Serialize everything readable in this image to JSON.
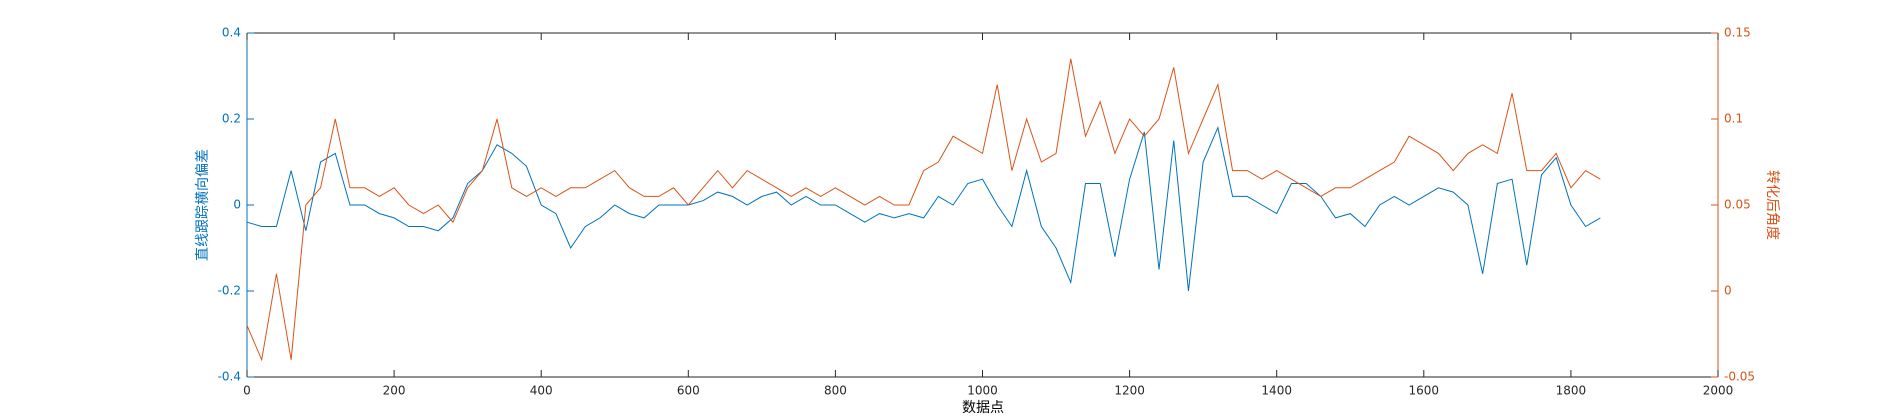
{
  "chart_data": {
    "type": "line",
    "x_label": "数据点",
    "y_label": "直线跟踪横向偏差",
    "y2_label": "转化后角度",
    "x": [
      0,
      20,
      40,
      60,
      80,
      100,
      120,
      140,
      160,
      180,
      200,
      220,
      240,
      260,
      280,
      300,
      320,
      340,
      360,
      380,
      400,
      420,
      440,
      460,
      480,
      500,
      520,
      540,
      560,
      580,
      600,
      620,
      640,
      660,
      680,
      700,
      720,
      740,
      760,
      780,
      800,
      820,
      840,
      860,
      880,
      900,
      920,
      940,
      960,
      980,
      1000,
      1020,
      1040,
      1060,
      1080,
      1100,
      1120,
      1140,
      1160,
      1180,
      1200,
      1220,
      1240,
      1260,
      1280,
      1300,
      1320,
      1340,
      1360,
      1380,
      1400,
      1420,
      1440,
      1460,
      1480,
      1500,
      1520,
      1540,
      1560,
      1580,
      1600,
      1620,
      1640,
      1660,
      1680,
      1700,
      1720,
      1740,
      1760,
      1780,
      1800,
      1820,
      1840
    ],
    "series": [
      {
        "color": "#0072BD",
        "axis": "y",
        "values": [
          -0.04,
          -0.05,
          -0.05,
          0.08,
          -0.06,
          0.1,
          0.12,
          0.0,
          0.0,
          -0.02,
          -0.03,
          -0.05,
          -0.05,
          -0.06,
          -0.03,
          0.05,
          0.08,
          0.14,
          0.12,
          0.09,
          0.0,
          -0.02,
          -0.1,
          -0.05,
          -0.03,
          0.0,
          -0.02,
          -0.03,
          0.0,
          0.0,
          0.0,
          0.01,
          0.03,
          0.02,
          0.0,
          0.02,
          0.03,
          0.0,
          0.02,
          0.0,
          0.0,
          -0.02,
          -0.04,
          -0.02,
          -0.03,
          -0.02,
          -0.03,
          0.02,
          0.0,
          0.05,
          0.06,
          0.0,
          -0.05,
          0.08,
          -0.05,
          -0.1,
          -0.18,
          0.05,
          0.05,
          -0.12,
          0.06,
          0.17,
          -0.15,
          0.15,
          -0.2,
          0.1,
          0.18,
          0.02,
          0.02,
          0.0,
          -0.02,
          0.05,
          0.05,
          0.02,
          -0.03,
          -0.02,
          -0.05,
          0.0,
          0.02,
          0.0,
          0.02,
          0.04,
          0.03,
          0.0,
          -0.16,
          0.05,
          0.06,
          -0.14,
          0.07,
          0.11,
          0.0,
          -0.05,
          -0.03
        ]
      },
      {
        "color": "#D95319",
        "axis": "y2",
        "values": [
          -0.02,
          -0.04,
          0.01,
          -0.04,
          0.05,
          0.06,
          0.1,
          0.06,
          0.06,
          0.055,
          0.06,
          0.05,
          0.045,
          0.05,
          0.04,
          0.06,
          0.07,
          0.1,
          0.06,
          0.055,
          0.06,
          0.055,
          0.06,
          0.06,
          0.065,
          0.07,
          0.06,
          0.055,
          0.055,
          0.06,
          0.05,
          0.06,
          0.07,
          0.06,
          0.07,
          0.065,
          0.06,
          0.055,
          0.06,
          0.055,
          0.06,
          0.055,
          0.05,
          0.055,
          0.05,
          0.05,
          0.07,
          0.075,
          0.09,
          0.085,
          0.08,
          0.12,
          0.07,
          0.1,
          0.075,
          0.08,
          0.135,
          0.09,
          0.11,
          0.08,
          0.1,
          0.09,
          0.1,
          0.13,
          0.08,
          0.1,
          0.12,
          0.07,
          0.07,
          0.065,
          0.07,
          0.065,
          0.06,
          0.055,
          0.06,
          0.06,
          0.065,
          0.07,
          0.075,
          0.09,
          0.085,
          0.08,
          0.07,
          0.08,
          0.085,
          0.08,
          0.115,
          0.07,
          0.07,
          0.08,
          0.06,
          0.07,
          0.065
        ]
      }
    ],
    "xlim": [
      0,
      2000
    ],
    "xticks": [
      0,
      200,
      400,
      600,
      800,
      1000,
      1200,
      1400,
      1600,
      1800,
      2000
    ],
    "ylim": [
      -0.4,
      0.4
    ],
    "yticks": [
      -0.4,
      -0.2,
      0,
      0.2,
      0.4
    ],
    "y2lim": [
      -0.05,
      0.15
    ],
    "y2ticks": [
      -0.05,
      0,
      0.05,
      0.1,
      0.15
    ],
    "y_color": "#0072BD",
    "y2_color": "#D95319",
    "grid": false
  }
}
